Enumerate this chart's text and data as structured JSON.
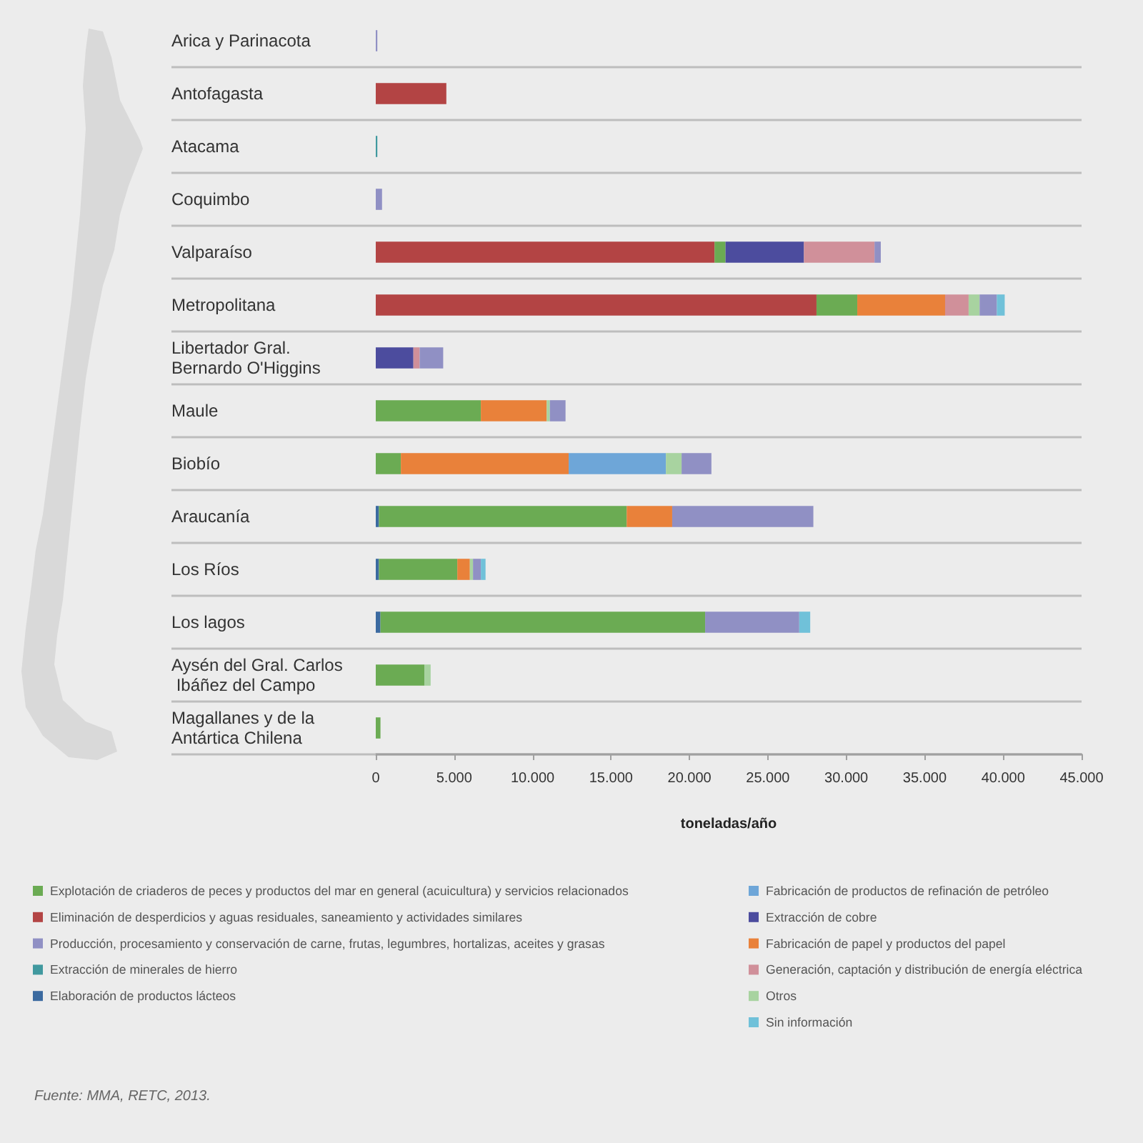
{
  "chart_data": {
    "type": "bar",
    "orientation": "horizontal",
    "stacked": true,
    "categories": [
      "Arica y Parinacota",
      "Antofagasta",
      "Atacama",
      "Coquimbo",
      "Valparaíso",
      "Metropolitana",
      "Libertador Gral. Bernardo O'Higgins",
      "Maule",
      "Biobío",
      "Araucanía",
      "Los Ríos",
      "Los lagos",
      "Aysén del Gral. Carlos Ibáñez del Campo",
      "Magallanes y de la Antártica Chilena"
    ],
    "series": [
      {
        "name": "Elaboración de productos lácteos",
        "color": "#3b6aa0",
        "values": [
          null,
          null,
          null,
          null,
          null,
          null,
          null,
          null,
          null,
          200,
          200,
          300,
          null,
          null
        ]
      },
      {
        "name": "Eliminación de desperdicios y aguas residuales, saneamiento y actividades similares",
        "color": "#b34444",
        "values": [
          null,
          4500,
          null,
          null,
          21600,
          28100,
          null,
          null,
          null,
          null,
          null,
          null,
          null,
          null
        ]
      },
      {
        "name": "Explotación de criaderos de peces y productos del mar en general (acuicultura) y servicios relacionados",
        "color": "#6bab53",
        "values": [
          null,
          null,
          null,
          null,
          700,
          2600,
          null,
          6700,
          1600,
          15800,
          5000,
          20700,
          3100,
          300
        ]
      },
      {
        "name": "Extracción de cobre",
        "color": "#4c4c9e",
        "values": [
          null,
          null,
          null,
          null,
          5000,
          null,
          2400,
          null,
          null,
          null,
          null,
          null,
          null,
          null
        ]
      },
      {
        "name": "Extracción de minerales de hierro",
        "color": "#40999f",
        "values": [
          null,
          null,
          100,
          null,
          null,
          null,
          null,
          null,
          null,
          null,
          null,
          null,
          null,
          null
        ]
      },
      {
        "name": "Fabricación de papel y productos del papel",
        "color": "#e9813a",
        "values": [
          null,
          null,
          null,
          null,
          null,
          5600,
          null,
          4200,
          10700,
          2900,
          800,
          null,
          null,
          null
        ]
      },
      {
        "name": "Fabricación de productos de refinación de petróleo",
        "color": "#6ea6d8",
        "values": [
          null,
          null,
          null,
          null,
          null,
          null,
          null,
          null,
          6200,
          null,
          null,
          null,
          null,
          null
        ]
      },
      {
        "name": "Generación, captación y distribución de energía eléctrica",
        "color": "#d0909a",
        "values": [
          null,
          null,
          null,
          null,
          4500,
          1500,
          400,
          null,
          null,
          null,
          null,
          null,
          null,
          null
        ]
      },
      {
        "name": "Otros",
        "color": "#a8d3a0",
        "values": [
          null,
          null,
          null,
          null,
          null,
          700,
          null,
          200,
          1000,
          null,
          200,
          null,
          400,
          null
        ]
      },
      {
        "name": "Producción, procesamiento y conservación de carne, frutas, legumbres, hortalizas, aceites y grasas",
        "color": "#9090c4",
        "values": [
          100,
          null,
          null,
          400,
          400,
          1100,
          1500,
          1000,
          1900,
          9000,
          500,
          6000,
          null,
          null
        ]
      },
      {
        "name": "Sin información",
        "color": "#70c1d9",
        "values": [
          null,
          null,
          null,
          null,
          null,
          500,
          null,
          null,
          null,
          null,
          300,
          700,
          null,
          null
        ]
      }
    ],
    "xlim": [
      0,
      45000
    ],
    "xticks": [
      0,
      {
        "value": 5000,
        "label": "5.000"
      },
      {
        "value": 10000,
        "label": "10.000"
      },
      {
        "value": 15000,
        "label": "15.000"
      },
      {
        "value": 20000,
        "label": "20.000"
      },
      {
        "value": 25000,
        "label": "25.000"
      },
      {
        "value": 30000,
        "label": "30.000"
      },
      {
        "value": 35000,
        "label": "35.000"
      },
      {
        "value": 40000,
        "label": "40.000"
      },
      {
        "value": 45000,
        "label": "45.000"
      }
    ],
    "xlabel": "toneladas/año",
    "grid": "y",
    "legend": "bottom",
    "annotations": [
      "Fuente: MMA, RETC, 2013."
    ]
  }
}
